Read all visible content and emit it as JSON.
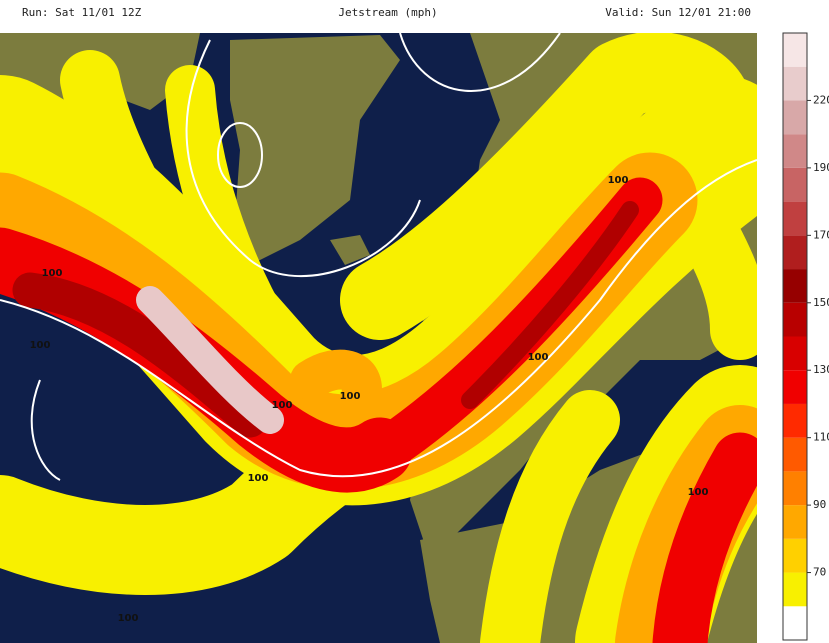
{
  "header": {
    "run": "Run: Sat 11/01 12Z",
    "title": "Jetstream (mph)",
    "valid": "Valid: Sun 12/01 21:00"
  },
  "colorbar": {
    "labels": [
      70,
      90,
      110,
      130,
      150,
      170,
      190,
      220
    ],
    "colors": [
      "#ffffff",
      "#f8f000",
      "#ffd000",
      "#ffa800",
      "#ff8000",
      "#ff5a00",
      "#ff2a00",
      "#f00000",
      "#d80000",
      "#b80000",
      "#960000",
      "#b01e1e",
      "#c04040",
      "#c86464",
      "#d08888",
      "#d8a8a8",
      "#e8cccc",
      "#f6e6e6"
    ]
  },
  "map": {
    "contour_labels": [
      "100",
      "100",
      "100",
      "100",
      "100",
      "100",
      "100",
      "100",
      "100"
    ]
  }
}
